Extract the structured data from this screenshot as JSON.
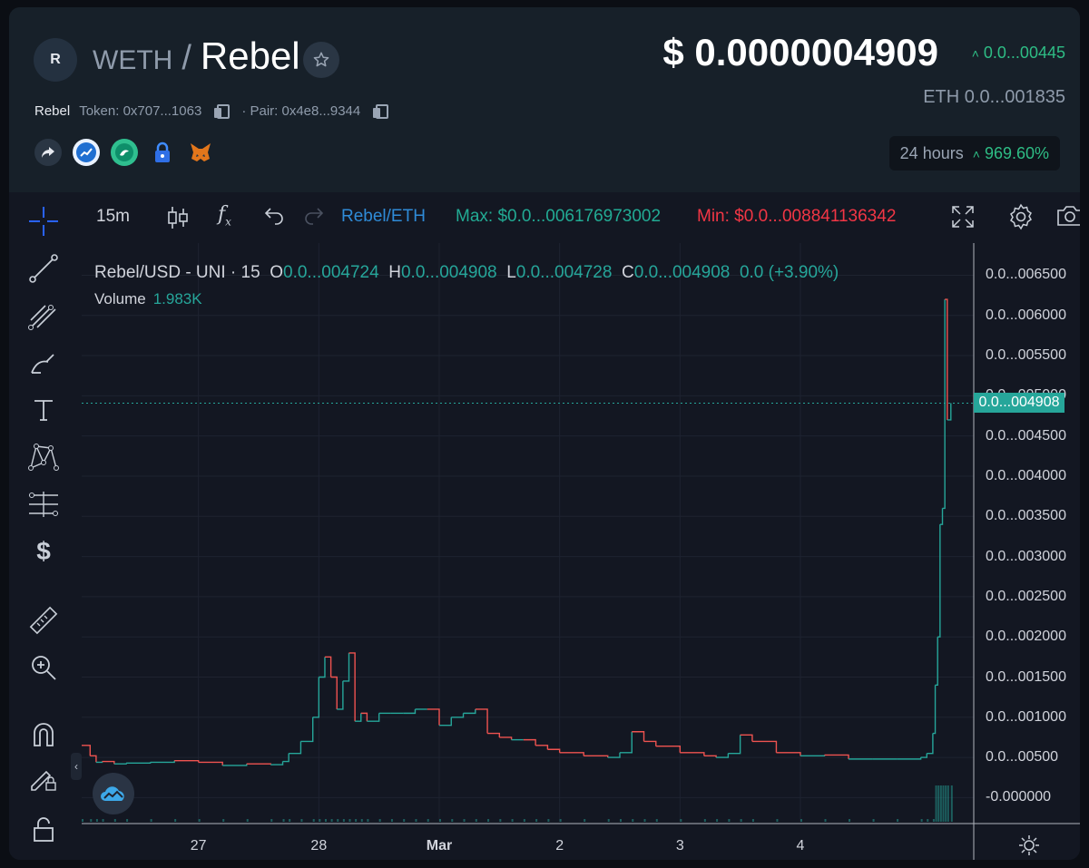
{
  "header": {
    "avatar_letter": "R",
    "base": "WETH",
    "slash": "/",
    "quote": "Rebel",
    "token_name": "Rebel",
    "token_label": "Token: 0x707...1063",
    "pair_label": "· Pair: 0x4e8...9344",
    "price_usd": "$ 0.0000004909",
    "price_change": "0.0...00445",
    "price_eth": "ETH  0.0...001835",
    "period_label": "24 hours",
    "period_change": "969.60%",
    "icons": [
      "share-icon",
      "dextools-icon",
      "uniswap-icon",
      "lock-icon",
      "metamask-icon"
    ]
  },
  "toolbar": {
    "interval": "15m",
    "pair": "Rebel/ETH",
    "max": "Max: $0.0...006176973002",
    "min": "Min: $0.0...008841136342"
  },
  "legend": {
    "symbol": "Rebel/USD - UNI · 15",
    "o_key": "O",
    "o_val": "0.0...004724",
    "h_key": "H",
    "h_val": "0.0...004908",
    "l_key": "L",
    "l_val": "0.0...004728",
    "c_key": "C",
    "c_val": "0.0...004908",
    "change": "0.0 (+3.90%)",
    "volume_label": "Volume",
    "volume_val": "1.983K"
  },
  "colors": {
    "up": "#26a69a",
    "down": "#ef5350",
    "green_text": "#2ebd85",
    "max_text": "#22ab94",
    "min_text": "#f23645",
    "pair_text": "#2962ff"
  },
  "chart_data": {
    "type": "line",
    "title": "Rebel/USD - UNI · 15",
    "y_tick_labels": [
      "0.0...006500",
      "0.0...006000",
      "0.0...005500",
      "0.0...005000",
      "0.0...004500",
      "0.0...004000",
      "0.0...003500",
      "0.0...003000",
      "0.0...002500",
      "0.0...002000",
      "0.0...001500",
      "0.0...001000",
      "0.0...00500",
      "-0.000000"
    ],
    "y_ticks": [
      6500,
      6000,
      5500,
      5000,
      4500,
      4000,
      3500,
      3000,
      2500,
      2000,
      1500,
      1000,
      500,
      0
    ],
    "x_tick_labels": [
      "27",
      "28",
      "Mar",
      "2",
      "3",
      "4"
    ],
    "x_ticks": [
      1,
      2,
      3,
      4,
      5,
      6
    ],
    "current_price_label": "0.0...004908",
    "current_price": 4908,
    "ylim": [
      -300,
      6900
    ],
    "xlim": [
      0.03,
      7.44
    ],
    "series": [
      {
        "x": [
          0.03,
          0.1,
          0.15,
          0.2,
          0.3,
          0.4,
          0.6,
          0.8,
          1.0,
          1.2,
          1.4,
          1.6,
          1.7,
          1.75,
          1.85,
          1.95,
          2.0,
          2.05,
          2.1,
          2.15,
          2.2,
          2.25,
          2.3,
          2.35,
          2.4,
          2.5,
          2.6,
          2.7,
          2.8,
          2.9,
          3.0,
          3.1,
          3.2,
          3.3,
          3.4,
          3.5,
          3.6,
          3.7,
          3.8,
          3.9,
          4.0,
          4.2,
          4.4,
          4.5,
          4.6,
          4.7,
          4.8,
          5.0,
          5.2,
          5.3,
          5.4,
          5.5,
          5.6,
          5.8,
          6.0,
          6.2,
          6.4,
          6.6,
          6.8,
          7.0,
          7.05,
          7.1,
          7.12,
          7.14,
          7.16,
          7.18,
          7.2,
          7.22,
          7.25
        ],
        "y": [
          650,
          520,
          440,
          450,
          420,
          430,
          440,
          460,
          440,
          400,
          420,
          410,
          450,
          550,
          700,
          1000,
          1500,
          1750,
          1500,
          1100,
          1450,
          1800,
          950,
          1050,
          950,
          1050,
          1050,
          1050,
          1100,
          1100,
          900,
          1000,
          1050,
          1100,
          800,
          750,
          720,
          720,
          650,
          600,
          560,
          520,
          500,
          560,
          820,
          700,
          640,
          560,
          520,
          500,
          550,
          780,
          700,
          560,
          520,
          530,
          480,
          480,
          480,
          500,
          550,
          800,
          1400,
          2000,
          3400,
          3600,
          6200,
          4700,
          4908
        ]
      }
    ]
  }
}
